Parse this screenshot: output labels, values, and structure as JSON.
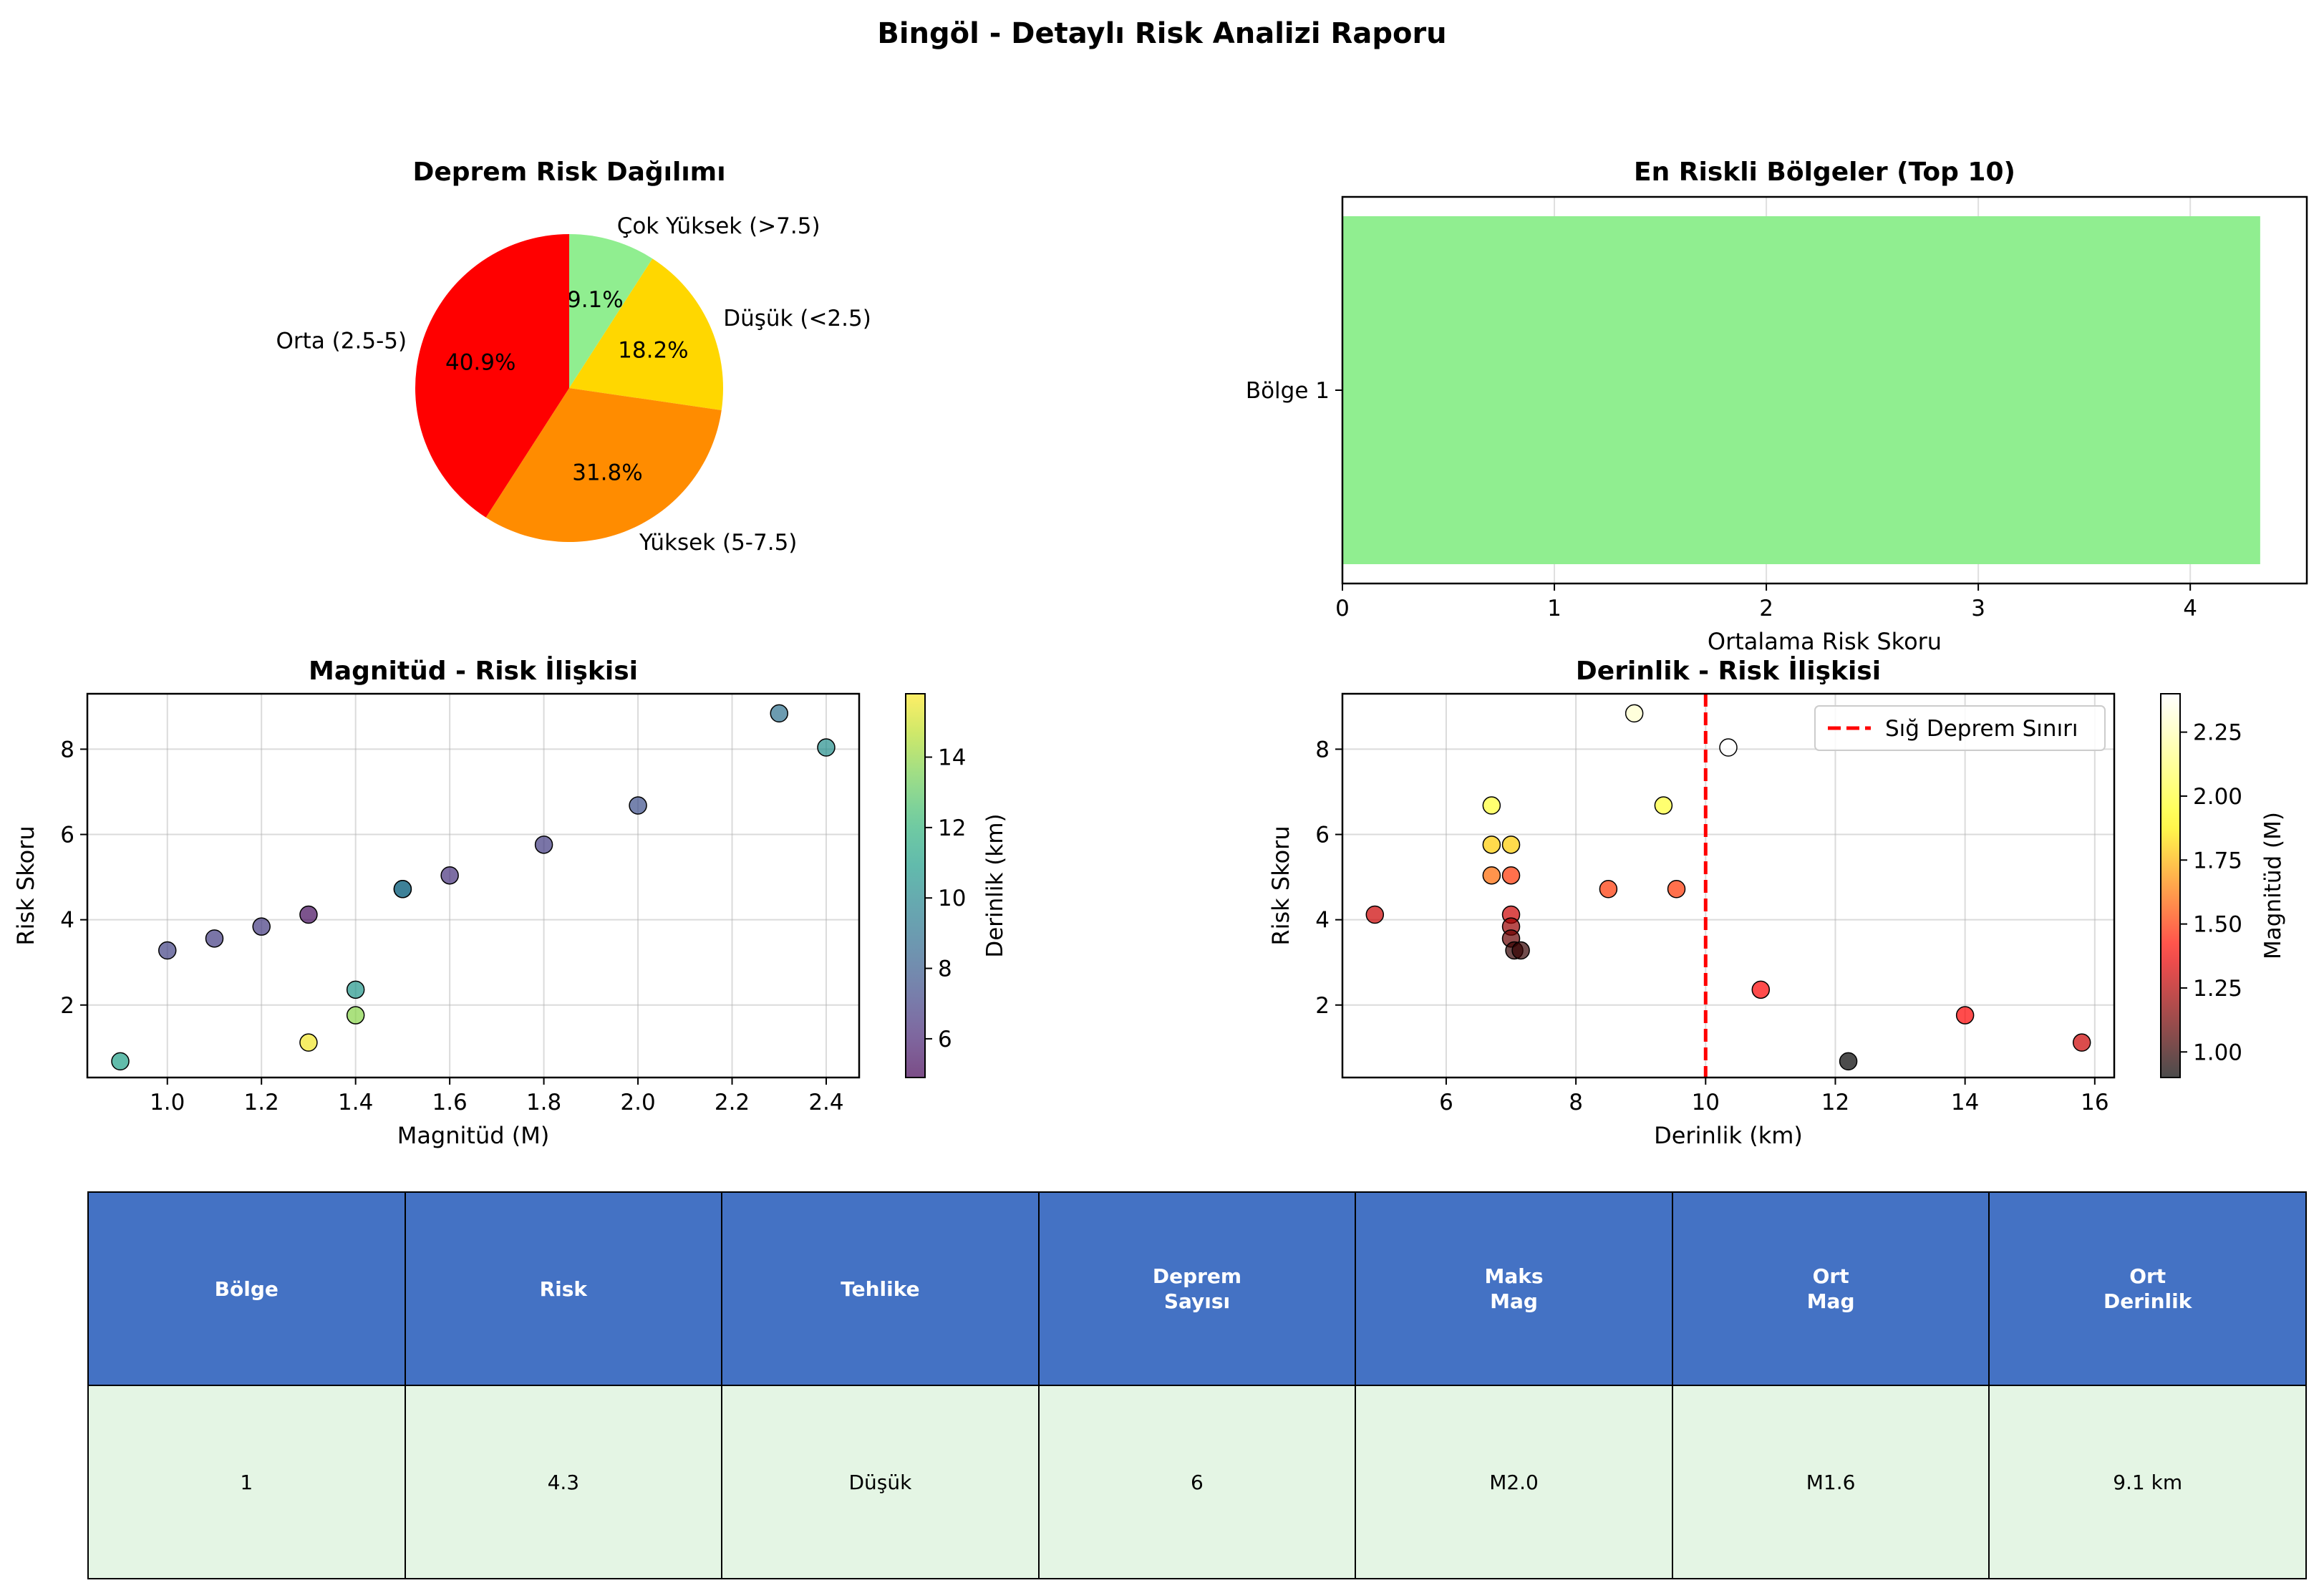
{
  "figure_title": "Bingöl - Detaylı Risk Analizi Raporu",
  "chart_data": [
    {
      "type": "pie",
      "title": "Deprem Risk Dağılımı",
      "labels": [
        "Çok Yüksek (>7.5)",
        "Düşük (<2.5)",
        "Yüksek (5-7.5)",
        "Orta (2.5-5)"
      ],
      "pct_labels": [
        "9.1%",
        "18.2%",
        "31.8%",
        "40.9%"
      ],
      "values": [
        9.1,
        18.2,
        31.8,
        40.9
      ],
      "colors": [
        "#90ee90",
        "#ffd700",
        "#ff8c00",
        "#ff0000"
      ],
      "start": "top",
      "direction": "clockwise"
    },
    {
      "type": "bar",
      "orientation": "horizontal",
      "title": "En Riskli Bölgeler (Top 10)",
      "categories": [
        "Bölge 1"
      ],
      "values": [
        4.33
      ],
      "color": "#90ee90",
      "xlabel": "Ortalama Risk Skoru",
      "xlim": [
        0,
        4.55
      ],
      "xticks": [
        "0",
        "1",
        "2",
        "3",
        "4"
      ],
      "grid": true
    },
    {
      "type": "scatter",
      "title": "Magnitüd - Risk İlişkisi",
      "xlabel": "Magnitüd (M)",
      "ylabel": "Risk Skoru",
      "xlim": [
        0.83,
        2.47
      ],
      "ylim": [
        0.3,
        9.3
      ],
      "xticks": [
        "1.0",
        "1.2",
        "1.4",
        "1.6",
        "1.8",
        "2.0",
        "2.2",
        "2.4"
      ],
      "yticks": [
        "2",
        "4",
        "6",
        "8"
      ],
      "points": [
        {
          "x": 0.9,
          "y": 0.68,
          "c": 11.0
        },
        {
          "x": 1.0,
          "y": 3.28,
          "c": 7.0
        },
        {
          "x": 1.1,
          "y": 3.56,
          "c": 6.8
        },
        {
          "x": 1.2,
          "y": 3.84,
          "c": 6.7
        },
        {
          "x": 1.3,
          "y": 4.12,
          "c": 5.2
        },
        {
          "x": 1.3,
          "y": 1.12,
          "c": 15.6
        },
        {
          "x": 1.4,
          "y": 2.36,
          "c": 10.6
        },
        {
          "x": 1.4,
          "y": 1.76,
          "c": 13.8
        },
        {
          "x": 1.5,
          "y": 4.72,
          "c": 8.6
        },
        {
          "x": 1.5,
          "y": 4.72,
          "c": 9.3
        },
        {
          "x": 1.6,
          "y": 5.04,
          "c": 6.4
        },
        {
          "x": 1.8,
          "y": 5.76,
          "c": 6.8
        },
        {
          "x": 2.0,
          "y": 6.68,
          "c": 7.5
        },
        {
          "x": 2.3,
          "y": 8.84,
          "c": 8.9
        },
        {
          "x": 2.4,
          "y": 8.04,
          "c": 10.3
        }
      ],
      "colorbar": {
        "label": "Derinlik (km)",
        "min": 4.9,
        "max": 15.8,
        "ticks": [
          "6",
          "8",
          "10",
          "12",
          "14"
        ],
        "colormap": "viridis"
      },
      "grid": true
    },
    {
      "type": "scatter",
      "title": "Derinlik - Risk İlişkisi",
      "xlabel": "Derinlik (km)",
      "ylabel": "Risk Skoru",
      "xlim": [
        4.4,
        16.3
      ],
      "ylim": [
        0.3,
        9.3
      ],
      "xticks": [
        "6",
        "8",
        "10",
        "12",
        "14",
        "16"
      ],
      "yticks": [
        "2",
        "4",
        "6",
        "8"
      ],
      "points": [
        {
          "x": 4.9,
          "y": 4.12,
          "c": 1.3
        },
        {
          "x": 6.7,
          "y": 6.68,
          "c": 2.0
        },
        {
          "x": 6.7,
          "y": 5.76,
          "c": 1.8
        },
        {
          "x": 6.7,
          "y": 5.04,
          "c": 1.6
        },
        {
          "x": 7.0,
          "y": 5.76,
          "c": 1.8
        },
        {
          "x": 7.0,
          "y": 5.04,
          "c": 1.5
        },
        {
          "x": 7.0,
          "y": 4.12,
          "c": 1.3
        },
        {
          "x": 7.0,
          "y": 3.84,
          "c": 1.2
        },
        {
          "x": 7.0,
          "y": 3.56,
          "c": 1.1
        },
        {
          "x": 7.05,
          "y": 3.28,
          "c": 1.0
        },
        {
          "x": 7.15,
          "y": 3.28,
          "c": 1.0
        },
        {
          "x": 8.5,
          "y": 4.72,
          "c": 1.5
        },
        {
          "x": 8.9,
          "y": 8.84,
          "c": 2.3
        },
        {
          "x": 9.35,
          "y": 6.68,
          "c": 2.0
        },
        {
          "x": 9.55,
          "y": 4.72,
          "c": 1.5
        },
        {
          "x": 10.35,
          "y": 8.04,
          "c": 2.4
        },
        {
          "x": 10.85,
          "y": 2.36,
          "c": 1.4
        },
        {
          "x": 12.2,
          "y": 0.68,
          "c": 0.9
        },
        {
          "x": 14.0,
          "y": 1.76,
          "c": 1.4
        },
        {
          "x": 15.8,
          "y": 1.12,
          "c": 1.3
        }
      ],
      "threshold": {
        "x": 10,
        "label": "Sığ Deprem Sınırı",
        "color": "#ff0000"
      },
      "colorbar": {
        "label": "Magnitüd (M)",
        "min": 0.9,
        "max": 2.4,
        "ticks": [
          "1.00",
          "1.25",
          "1.50",
          "1.75",
          "2.00",
          "2.25"
        ],
        "colormap": "hot"
      },
      "legend_position": "top-right",
      "grid": true
    },
    {
      "type": "table",
      "columns": [
        "Bölge",
        "Risk",
        "Tehlike",
        "Deprem\nSayısı",
        "Maks\nMag",
        "Ort\nMag",
        "Ort\nDerinlik"
      ],
      "rows": [
        [
          "1",
          "4.3",
          "Düşük",
          "6",
          "M2.0",
          "M1.6",
          "9.1 km"
        ]
      ],
      "header_color": "#4472c4",
      "row_color": "#e4f5e4"
    }
  ]
}
